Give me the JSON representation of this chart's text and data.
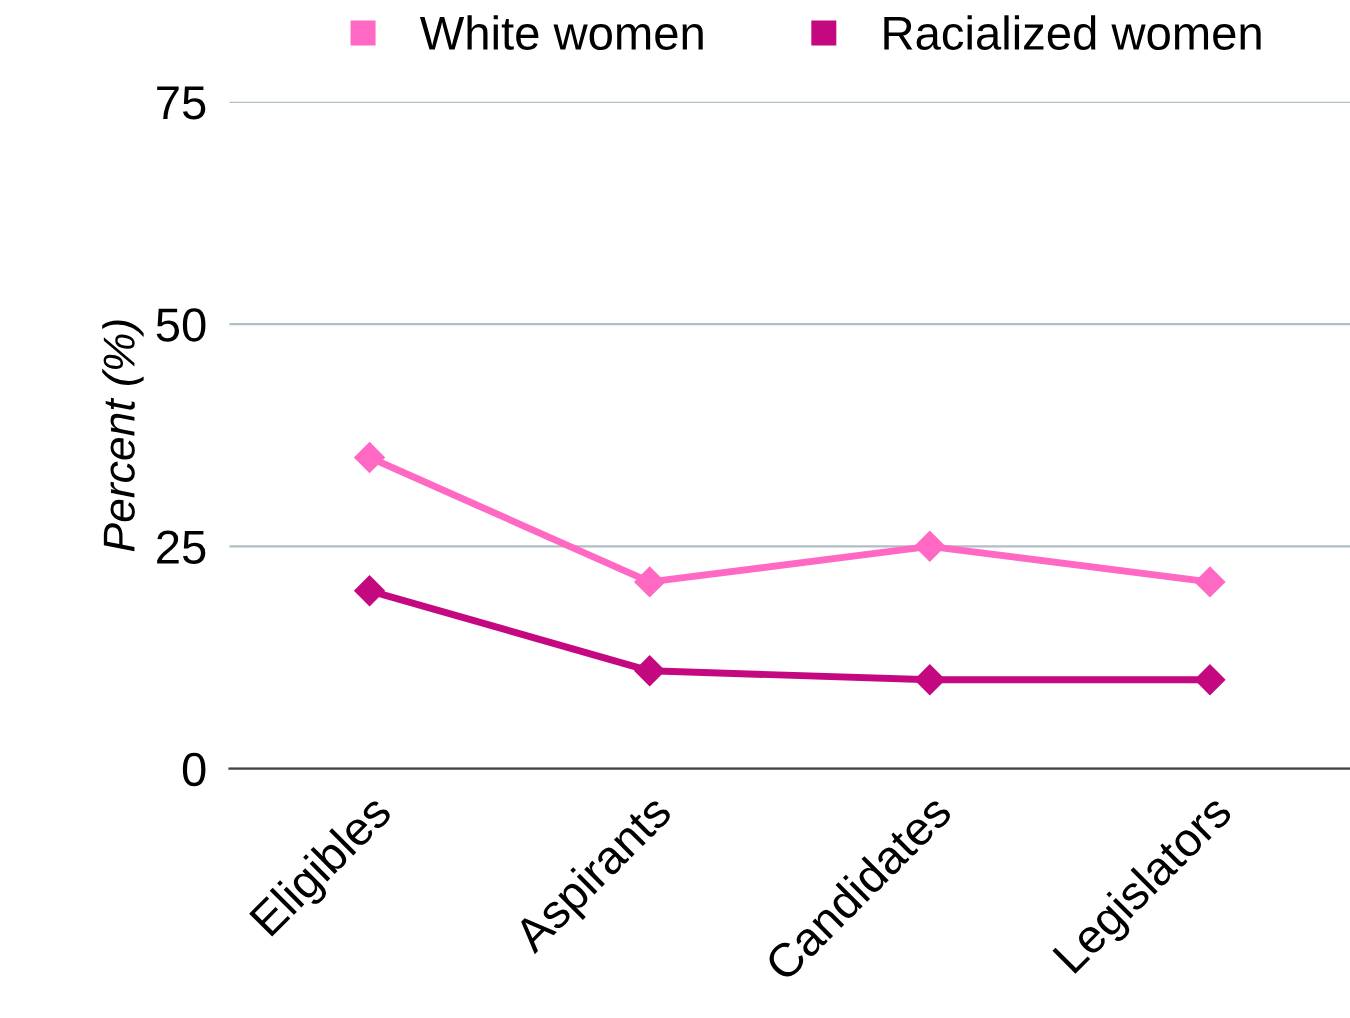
{
  "chart_data": {
    "type": "line",
    "ylabel": "Percent (%)",
    "categories": [
      "Eligibles",
      "Aspirants",
      "Candidates",
      "Legislators"
    ],
    "series": [
      {
        "name": "White women",
        "color": "#ff69c4",
        "values": [
          35,
          21,
          25,
          21
        ]
      },
      {
        "name": "Racialized women",
        "color": "#c4087f",
        "values": [
          20,
          11,
          10,
          10
        ]
      }
    ],
    "ylim": [
      0,
      75
    ],
    "yticks": [
      0,
      25,
      50,
      75
    ],
    "grid": "y",
    "legend": "top",
    "marker": "diamond",
    "line_style": "solid"
  }
}
